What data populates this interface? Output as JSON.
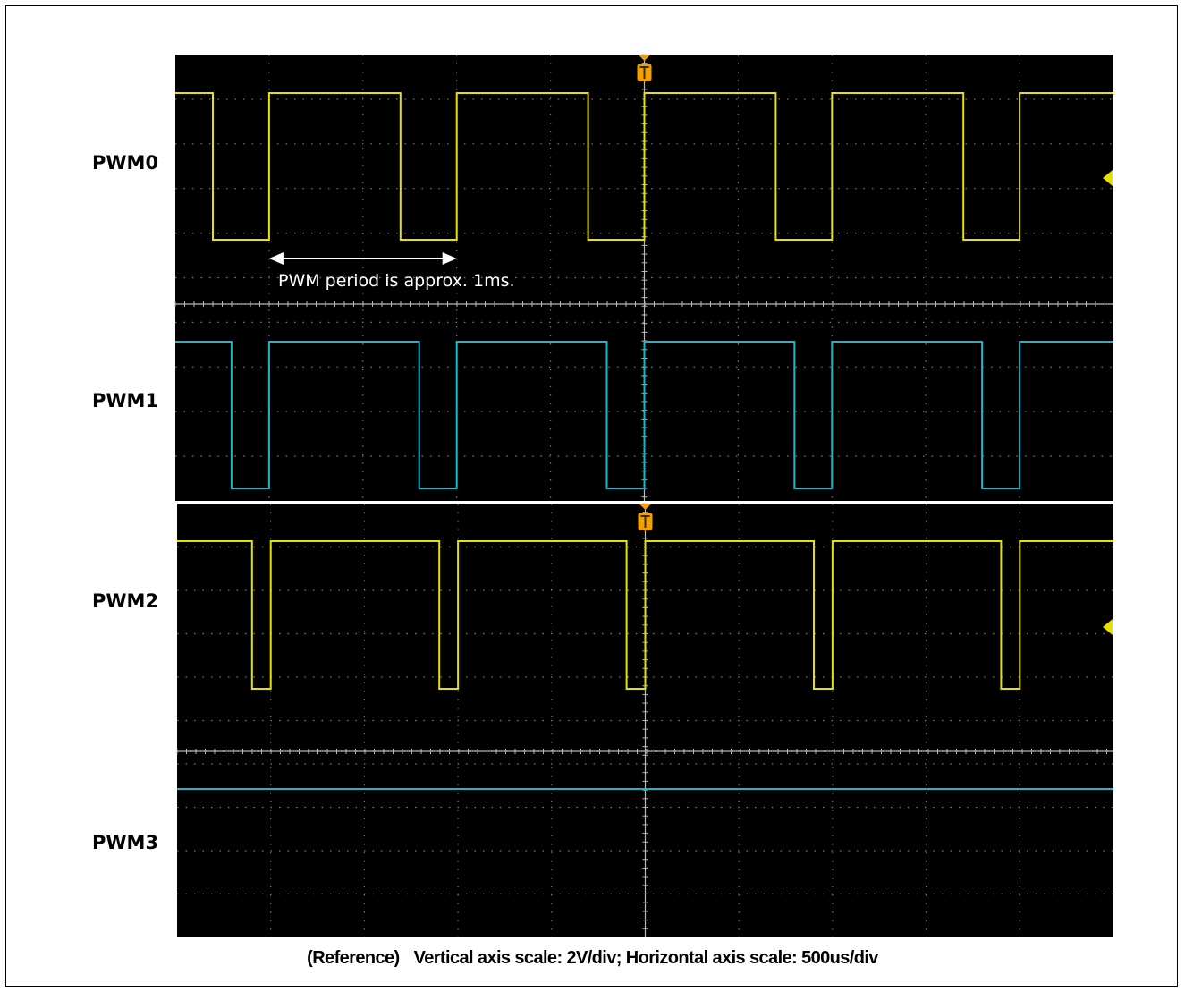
{
  "channels": [
    {
      "label": "PWM0"
    },
    {
      "label": "PWM1"
    },
    {
      "label": "PWM2"
    },
    {
      "label": "PWM3"
    }
  ],
  "annotation": "PWM period is approx. 1ms.",
  "caption": {
    "prefix": "(Reference)",
    "text": "Vertical axis scale: 2V/div; Horizontal axis scale: 500us/div"
  },
  "colors": {
    "background": "#000000",
    "grid": "#8c8c8c",
    "yellow_trace": "#e8e000",
    "cyan_trace": "#1fb5c9",
    "trigger_marker": "#f0a000",
    "annotation": "#ffffff"
  },
  "chart_data": {
    "type": "line",
    "x_units": "us",
    "x_div_us": 500,
    "y_div_V": 2,
    "x_range_us": [
      -2500,
      2500
    ],
    "series": [
      {
        "name": "PWM0",
        "color_key": "yellow_trace",
        "high_V": 3.3,
        "low_V": 0,
        "points": [
          [
            -2500,
            3.3
          ],
          [
            -2300,
            3.3
          ],
          [
            -2300,
            0
          ],
          [
            -2000,
            0
          ],
          [
            -2000,
            3.3
          ],
          [
            -1300,
            3.3
          ],
          [
            -1300,
            0
          ],
          [
            -1000,
            0
          ],
          [
            -1000,
            3.3
          ],
          [
            -300,
            3.3
          ],
          [
            -300,
            0
          ],
          [
            0,
            0
          ],
          [
            0,
            3.3
          ],
          [
            700,
            3.3
          ],
          [
            700,
            0
          ],
          [
            1000,
            0
          ],
          [
            1000,
            3.3
          ],
          [
            1700,
            3.3
          ],
          [
            1700,
            0
          ],
          [
            2000,
            0
          ],
          [
            2000,
            3.3
          ],
          [
            2500,
            3.3
          ]
        ]
      },
      {
        "name": "PWM1",
        "color_key": "cyan_trace",
        "high_V": 3.3,
        "low_V": 0,
        "points": [
          [
            -2500,
            3.3
          ],
          [
            -2200,
            3.3
          ],
          [
            -2200,
            0
          ],
          [
            -2000,
            0
          ],
          [
            -2000,
            3.3
          ],
          [
            -1200,
            3.3
          ],
          [
            -1200,
            0
          ],
          [
            -1000,
            0
          ],
          [
            -1000,
            3.3
          ],
          [
            -200,
            3.3
          ],
          [
            -200,
            0
          ],
          [
            0,
            0
          ],
          [
            0,
            3.3
          ],
          [
            800,
            3.3
          ],
          [
            800,
            0
          ],
          [
            1000,
            0
          ],
          [
            1000,
            3.3
          ],
          [
            1800,
            3.3
          ],
          [
            1800,
            0
          ],
          [
            2000,
            0
          ],
          [
            2000,
            3.3
          ],
          [
            2500,
            3.3
          ]
        ]
      },
      {
        "name": "PWM2",
        "color_key": "yellow_trace",
        "high_V": 3.3,
        "low_V": 0,
        "points": [
          [
            -2500,
            3.3
          ],
          [
            -2100,
            3.3
          ],
          [
            -2100,
            0
          ],
          [
            -2000,
            0
          ],
          [
            -2000,
            3.3
          ],
          [
            -1100,
            3.3
          ],
          [
            -1100,
            0
          ],
          [
            -1000,
            0
          ],
          [
            -1000,
            3.3
          ],
          [
            -100,
            3.3
          ],
          [
            -100,
            0
          ],
          [
            0,
            0
          ],
          [
            0,
            3.3
          ],
          [
            900,
            3.3
          ],
          [
            900,
            0
          ],
          [
            1000,
            0
          ],
          [
            1000,
            3.3
          ],
          [
            1900,
            3.3
          ],
          [
            1900,
            0
          ],
          [
            2000,
            0
          ],
          [
            2000,
            3.3
          ],
          [
            2500,
            3.3
          ]
        ]
      },
      {
        "name": "PWM3",
        "color_key": "cyan_trace",
        "high_V": 3.3,
        "low_V": 0,
        "points": [
          [
            -2500,
            3.3
          ],
          [
            2500,
            3.3
          ]
        ]
      }
    ],
    "annotations": [
      {
        "text": "PWM period is approx. 1ms.",
        "x_start_us": -2000,
        "x_end_us": -1000
      }
    ]
  }
}
